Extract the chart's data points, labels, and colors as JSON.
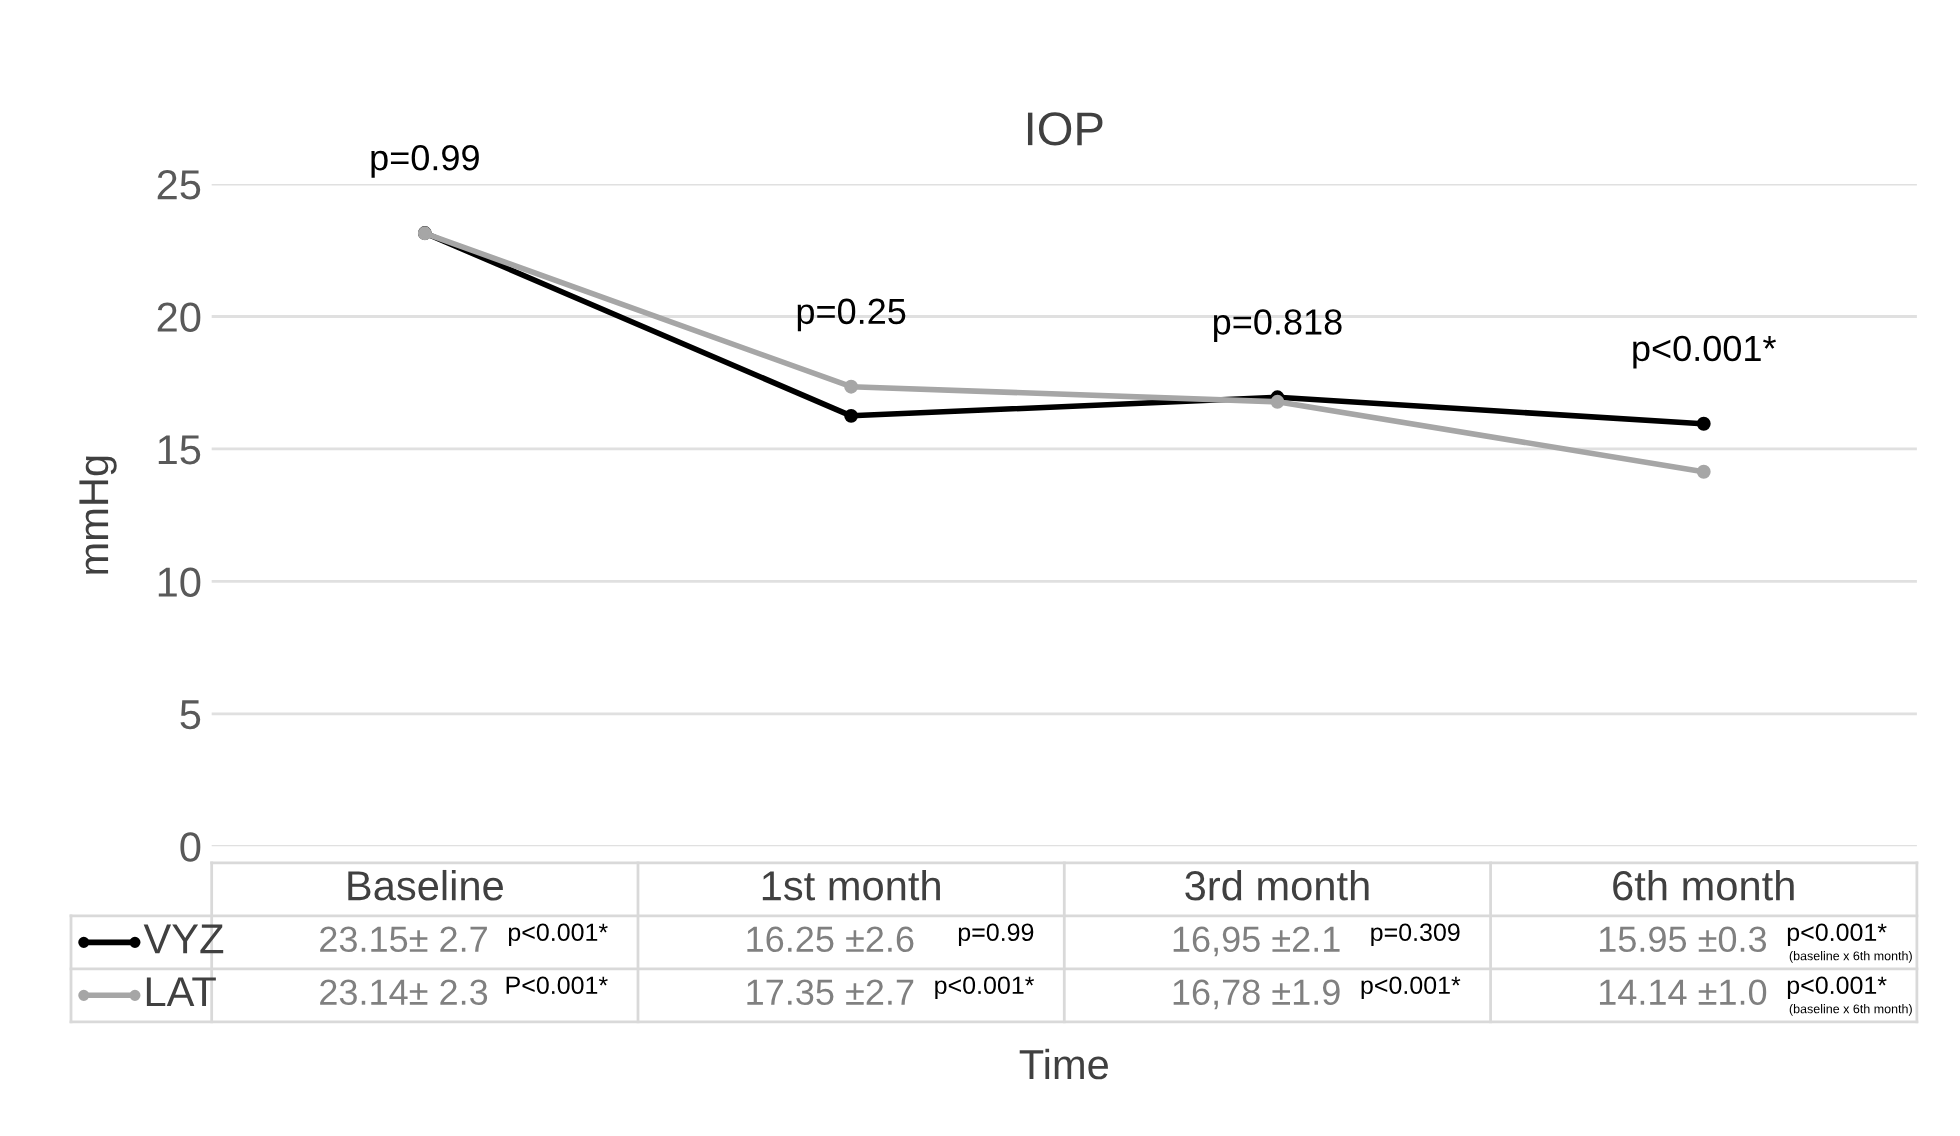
{
  "chart_data": {
    "type": "line",
    "title": "IOP",
    "xlabel": "Time",
    "ylabel": "mmHg",
    "categories": [
      "Baseline",
      "1st month",
      "3rd month",
      "6th month"
    ],
    "series": [
      {
        "name": "VYZ",
        "color": "#000000",
        "values": [
          23.15,
          16.25,
          16.95,
          15.95
        ],
        "value_labels": [
          "23.15± 2.7",
          "16.25 ±2.6",
          "16,95 ±2.1",
          "15.95 ±0.3"
        ]
      },
      {
        "name": "LAT",
        "color": "#a6a6a6",
        "values": [
          23.14,
          17.35,
          16.78,
          14.14
        ],
        "value_labels": [
          "23.14± 2.3",
          "17.35 ±2.7",
          "16,78 ±1.9",
          "14.14 ±1.0"
        ]
      }
    ],
    "ylim": [
      0,
      25
    ],
    "yticks": [
      0,
      5,
      10,
      15,
      20,
      25
    ],
    "grid": "y",
    "marker": "circle",
    "line_style": "solid",
    "legend": "bottom",
    "annotations": [
      "p=0.99",
      "p=0.25",
      "p=0.818",
      "p<0.001*",
      "p<0.001*",
      "p=0.99",
      "p=0.309",
      "p<0.001*",
      "(baseline x 6th month)",
      "P<0.001*",
      "p<0.001*",
      "p<0.001*",
      "p<0.001*",
      "(baseline x 6th month)"
    ]
  }
}
